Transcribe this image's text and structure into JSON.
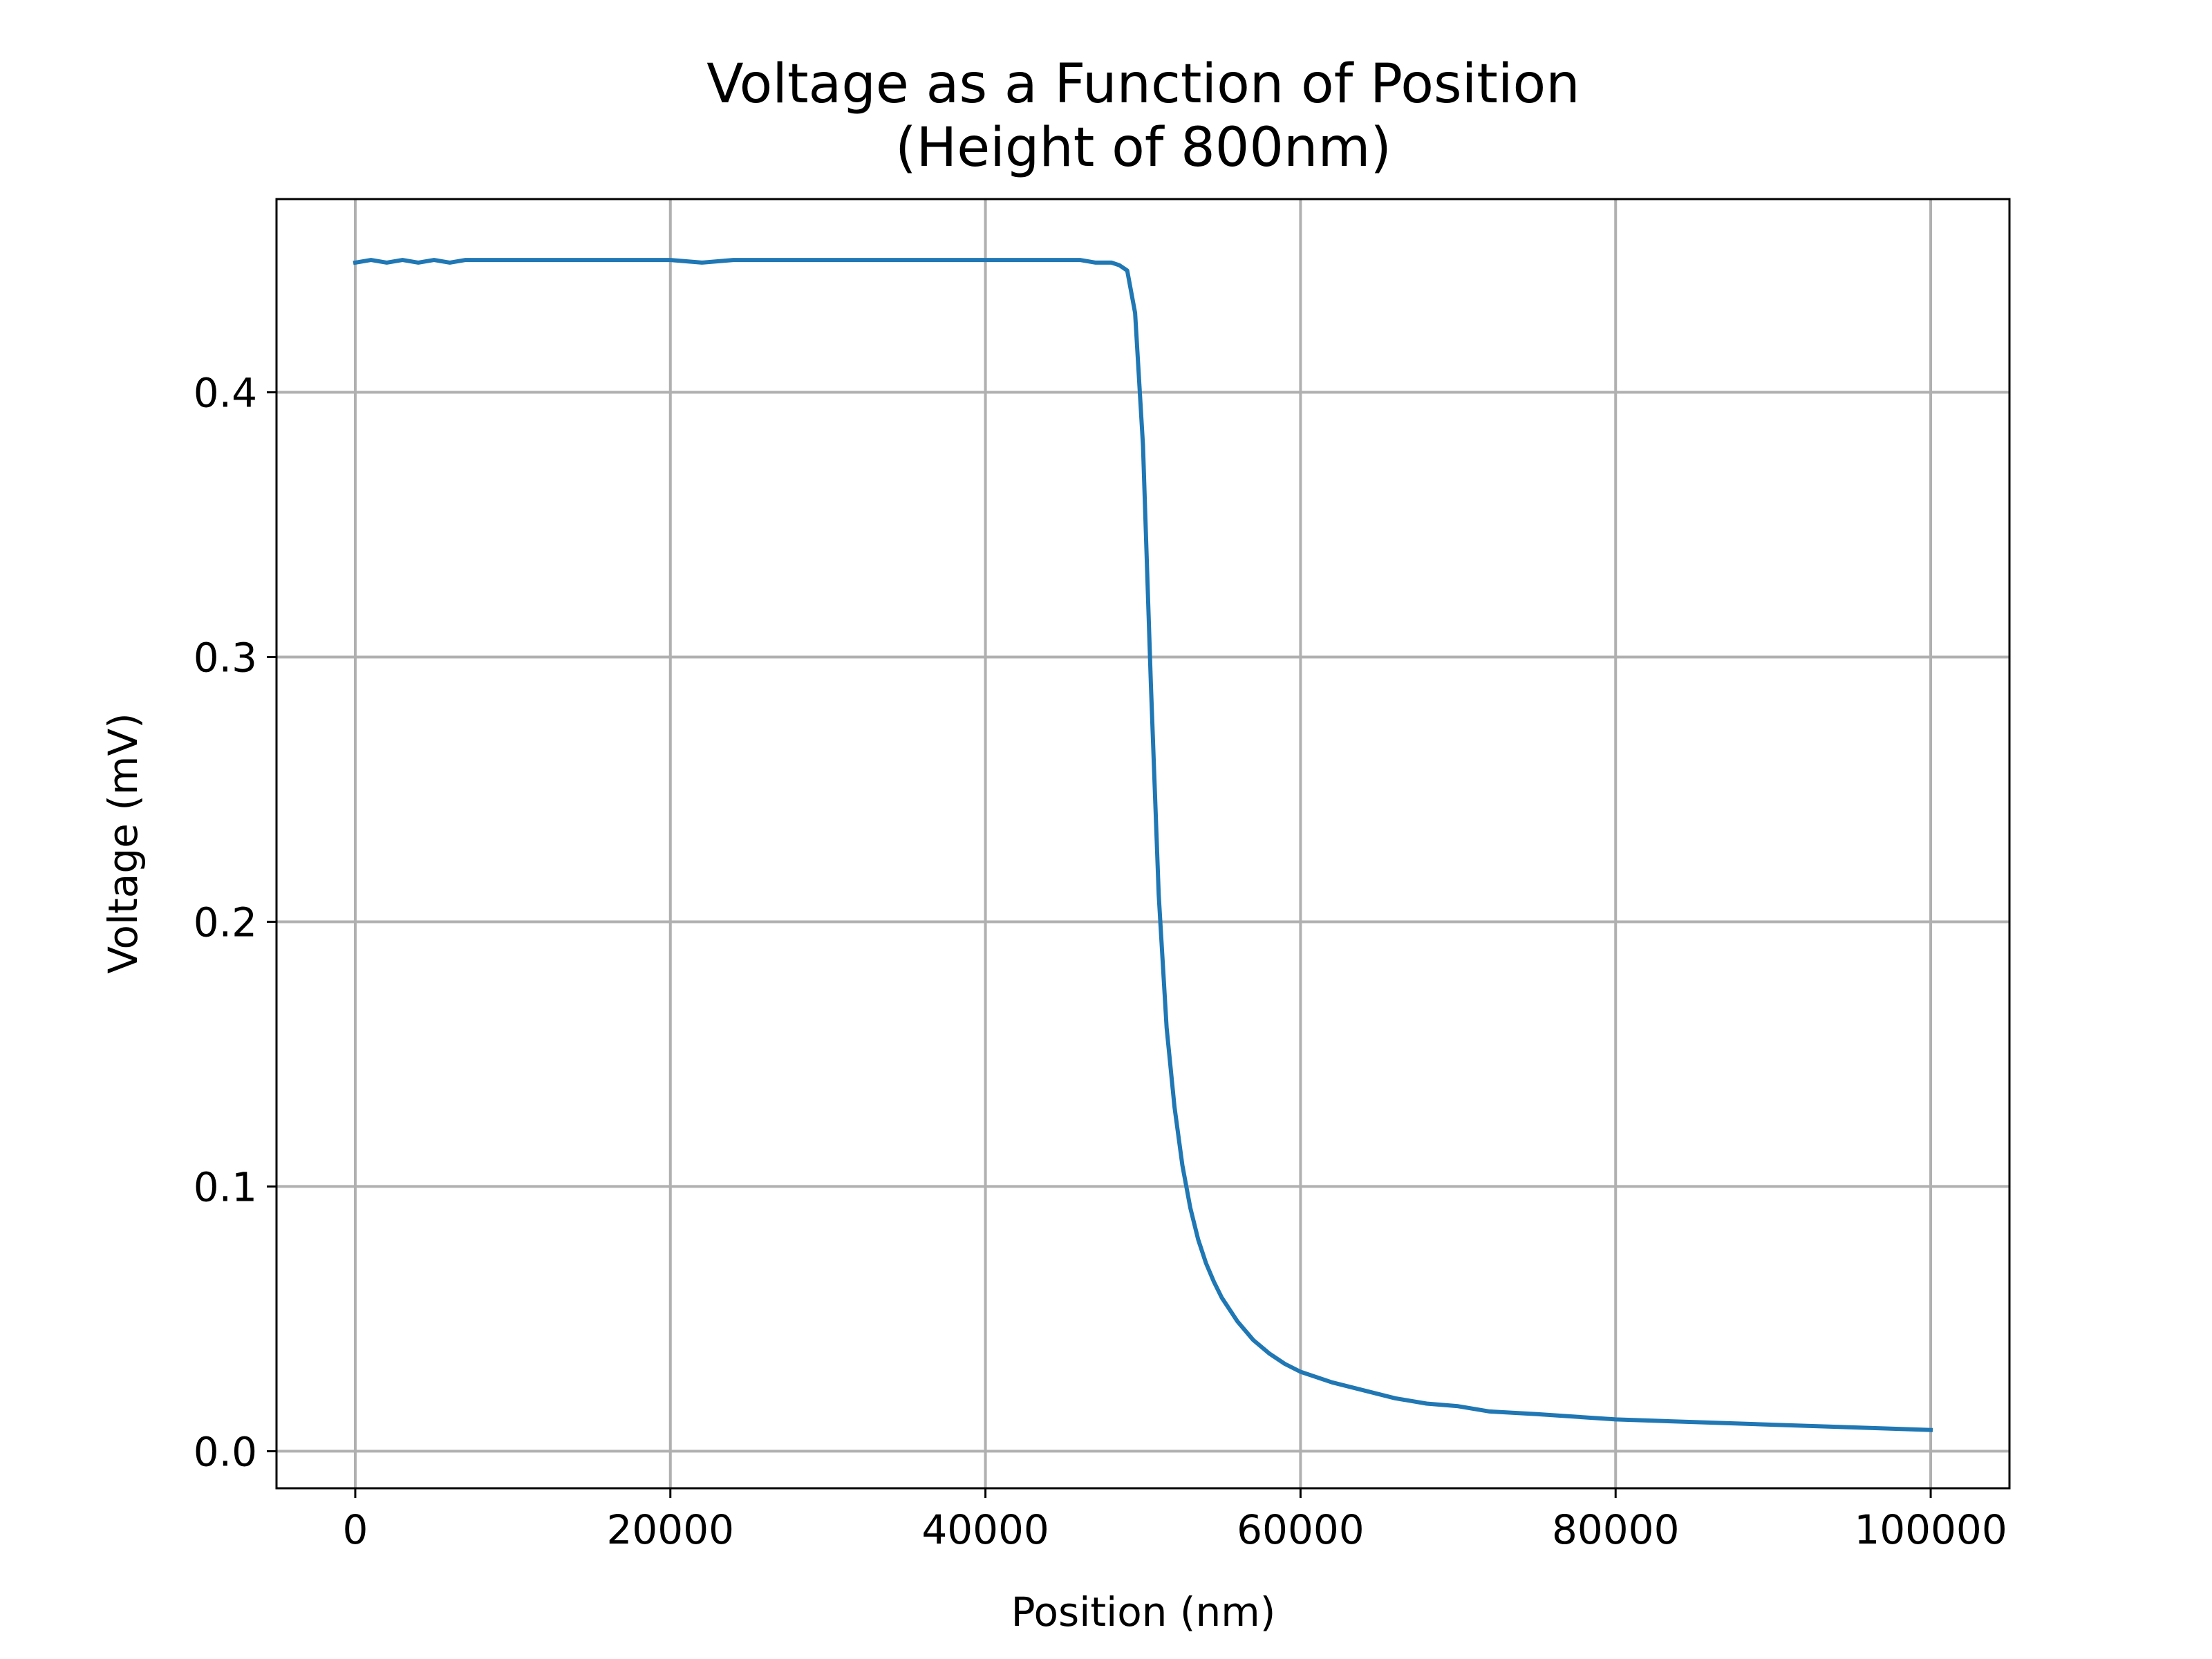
{
  "chart_data": {
    "type": "line",
    "title": "Voltage as a Function of Position",
    "subtitle": "(Height of 800nm)",
    "xlabel": "Position (nm)",
    "ylabel": "Voltage (mV)",
    "xlim": [
      -5000,
      105000
    ],
    "ylim": [
      -0.014,
      0.473
    ],
    "grid": true,
    "legend": "none",
    "x_ticks": [
      {
        "value": 0,
        "label": "0"
      },
      {
        "value": 20000,
        "label": "20000"
      },
      {
        "value": 40000,
        "label": "40000"
      },
      {
        "value": 60000,
        "label": "60000"
      },
      {
        "value": 80000,
        "label": "80000"
      },
      {
        "value": 100000,
        "label": "100000"
      }
    ],
    "y_ticks": [
      {
        "value": 0.0,
        "label": "0.0"
      },
      {
        "value": 0.1,
        "label": "0.1"
      },
      {
        "value": 0.2,
        "label": "0.2"
      },
      {
        "value": 0.3,
        "label": "0.3"
      },
      {
        "value": 0.4,
        "label": "0.4"
      }
    ],
    "series": [
      {
        "color": "#1f77b4",
        "x": [
          0,
          1000,
          2000,
          3000,
          4000,
          5000,
          6000,
          7000,
          8000,
          10000,
          12000,
          14000,
          16000,
          18000,
          20000,
          22000,
          24000,
          26000,
          28000,
          30000,
          32000,
          34000,
          36000,
          38000,
          40000,
          42000,
          44000,
          46000,
          47000,
          48000,
          48500,
          49000,
          49500,
          50000,
          50500,
          51000,
          51500,
          52000,
          52500,
          53000,
          53500,
          54000,
          54500,
          55000,
          56000,
          57000,
          58000,
          59000,
          60000,
          62000,
          64000,
          66000,
          68000,
          70000,
          72000,
          75000,
          80000,
          85000,
          90000,
          95000,
          100000
        ],
        "y": [
          0.449,
          0.45,
          0.449,
          0.45,
          0.449,
          0.45,
          0.449,
          0.45,
          0.45,
          0.45,
          0.45,
          0.45,
          0.45,
          0.45,
          0.45,
          0.449,
          0.45,
          0.45,
          0.45,
          0.45,
          0.45,
          0.45,
          0.45,
          0.45,
          0.45,
          0.45,
          0.45,
          0.45,
          0.449,
          0.449,
          0.448,
          0.446,
          0.43,
          0.38,
          0.29,
          0.21,
          0.16,
          0.13,
          0.108,
          0.092,
          0.08,
          0.071,
          0.064,
          0.058,
          0.049,
          0.042,
          0.037,
          0.033,
          0.03,
          0.026,
          0.023,
          0.02,
          0.018,
          0.017,
          0.015,
          0.014,
          0.012,
          0.011,
          0.01,
          0.009,
          0.008
        ]
      }
    ]
  }
}
